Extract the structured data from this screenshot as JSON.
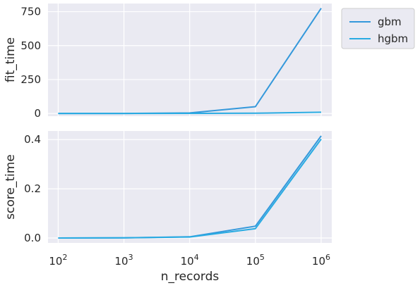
{
  "chart_data": {
    "type": "line",
    "shared_x": {
      "label": "n_records",
      "scale": "log",
      "range": [
        70,
        1450000
      ],
      "ticks": [
        100,
        1000,
        10000,
        100000,
        1000000
      ],
      "tick_labels": [
        "10^2",
        "10^3",
        "10^4",
        "10^5",
        "10^6"
      ]
    },
    "grid": true,
    "legend": {
      "placement": "outside-top-right",
      "entries": [
        "gbm",
        "hgbm"
      ]
    },
    "colors": {
      "gbm": "#3498db",
      "hgbm": "#29abe2",
      "background": "#eaeaf2",
      "grid": "#ffffff",
      "text": "#262626"
    },
    "panels": [
      {
        "ylabel": "fit_time",
        "ylim": [
          -20,
          810
        ],
        "yticks": [
          0,
          250,
          500,
          750
        ],
        "series": [
          {
            "name": "gbm",
            "x": [
              100,
              1000,
              10000,
              100000,
              1000000
            ],
            "y": [
              0.05,
              0.3,
              4,
              50,
              775
            ]
          },
          {
            "name": "hgbm",
            "x": [
              100,
              1000,
              10000,
              100000,
              1000000
            ],
            "y": [
              0.1,
              0.2,
              0.8,
              2,
              9
            ]
          }
        ]
      },
      {
        "ylabel": "score_time",
        "ylim": [
          -0.02,
          0.435
        ],
        "yticks": [
          0.0,
          0.2,
          0.4
        ],
        "ytick_labels": [
          "0.0",
          "0.2",
          "0.4"
        ],
        "series": [
          {
            "name": "gbm",
            "x": [
              100,
              1000,
              10000,
              100000,
              1000000
            ],
            "y": [
              0.0,
              0.001,
              0.005,
              0.048,
              0.415
            ]
          },
          {
            "name": "hgbm",
            "x": [
              100,
              1000,
              10000,
              100000,
              1000000
            ],
            "y": [
              0.0,
              0.001,
              0.004,
              0.038,
              0.402
            ]
          }
        ]
      }
    ]
  }
}
